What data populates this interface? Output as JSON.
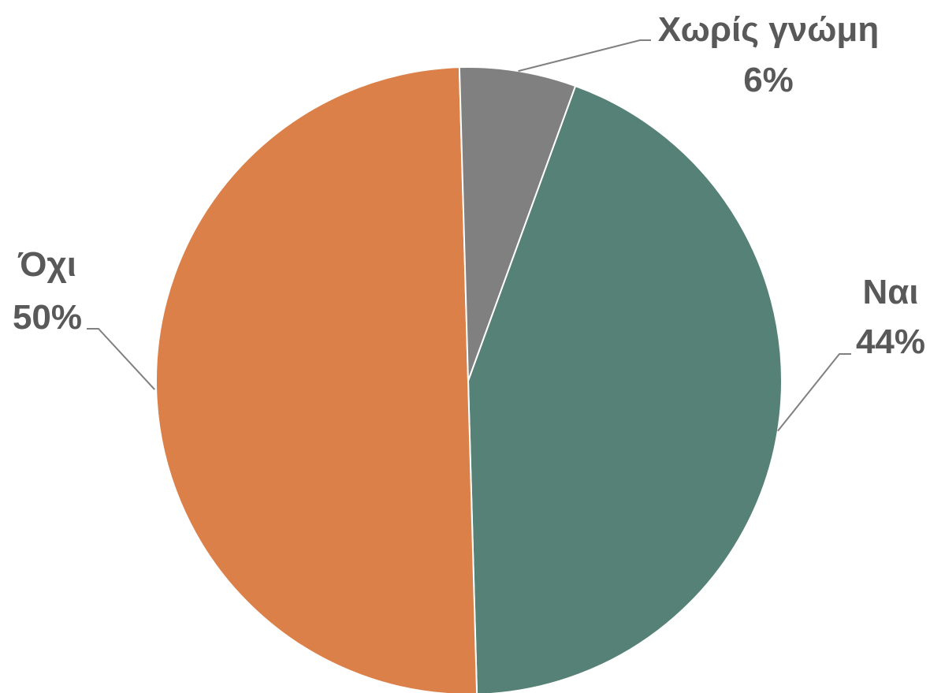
{
  "chart_data": {
    "type": "pie",
    "slices": [
      {
        "label": "Ναι",
        "value": 44,
        "value_label": "44%",
        "color": "#568176"
      },
      {
        "label": "Όχι",
        "value": 50,
        "value_label": "50%",
        "color": "#DB8048"
      },
      {
        "label": "Χωρίς γνώμη",
        "value": 6,
        "value_label": "6%",
        "color": "#808080"
      }
    ],
    "start_angle_deg": 20,
    "direction": "clockwise",
    "legend": "none",
    "data_labels": "outside-with-leader-lines",
    "label_color": "#595959",
    "leader_line_color": "#808080"
  }
}
